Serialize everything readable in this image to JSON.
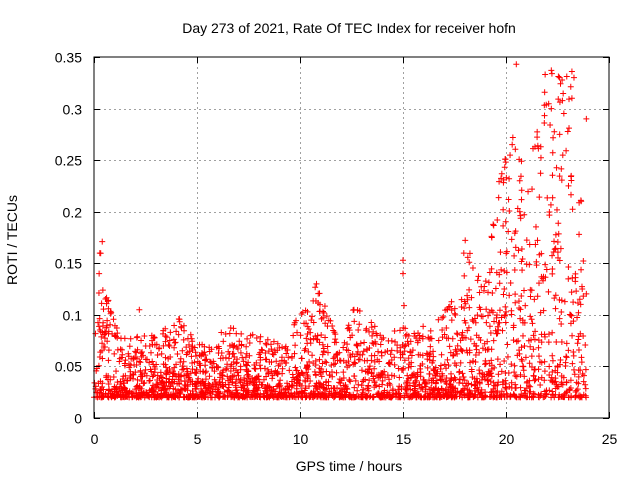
{
  "chart_data": {
    "type": "scatter",
    "title": "Day 273 of 2021, Rate Of TEC Index for receiver hofn",
    "xlabel": "GPS time / hours",
    "ylabel": "ROTI / TECUs",
    "xlim": [
      0,
      25
    ],
    "ylim": [
      0,
      0.35
    ],
    "xticks": [
      0,
      5,
      10,
      15,
      20,
      25
    ],
    "xtick_labels": [
      "0",
      "5",
      "10",
      "15",
      "20",
      "25"
    ],
    "yticks": [
      0,
      0.05,
      0.1,
      0.15,
      0.2,
      0.25,
      0.3,
      0.35
    ],
    "ytick_labels": [
      "0",
      "0.05",
      "0.1",
      "0.15",
      "0.2",
      "0.25",
      "0.3",
      "0.35"
    ],
    "grid": true,
    "marker": "+",
    "color": "#ff0000",
    "series": [
      {
        "name": "ROTI",
        "envelope_note": "dense band of points; approximate upper envelope by time",
        "envelope": [
          {
            "t": 0.0,
            "low": 0.01,
            "high": 0.06
          },
          {
            "t": 0.3,
            "low": 0.01,
            "high": 0.17
          },
          {
            "t": 0.7,
            "low": 0.01,
            "high": 0.12
          },
          {
            "t": 1.2,
            "low": 0.01,
            "high": 0.08
          },
          {
            "t": 2.0,
            "low": 0.01,
            "high": 0.08
          },
          {
            "t": 3.0,
            "low": 0.01,
            "high": 0.08
          },
          {
            "t": 4.2,
            "low": 0.01,
            "high": 0.1
          },
          {
            "t": 5.0,
            "low": 0.01,
            "high": 0.07
          },
          {
            "t": 6.0,
            "low": 0.01,
            "high": 0.08
          },
          {
            "t": 6.6,
            "low": 0.01,
            "high": 0.09
          },
          {
            "t": 8.0,
            "low": 0.01,
            "high": 0.08
          },
          {
            "t": 9.5,
            "low": 0.01,
            "high": 0.07
          },
          {
            "t": 10.0,
            "low": 0.01,
            "high": 0.12
          },
          {
            "t": 10.8,
            "low": 0.01,
            "high": 0.13
          },
          {
            "t": 12.0,
            "low": 0.01,
            "high": 0.07
          },
          {
            "t": 12.6,
            "low": 0.01,
            "high": 0.11
          },
          {
            "t": 13.2,
            "low": 0.01,
            "high": 0.1
          },
          {
            "t": 14.0,
            "low": 0.01,
            "high": 0.08
          },
          {
            "t": 15.0,
            "low": 0.01,
            "high": 0.09
          },
          {
            "t": 16.5,
            "low": 0.01,
            "high": 0.09
          },
          {
            "t": 17.5,
            "low": 0.01,
            "high": 0.12
          },
          {
            "t": 18.0,
            "low": 0.01,
            "high": 0.18
          },
          {
            "t": 19.0,
            "low": 0.01,
            "high": 0.14
          },
          {
            "t": 19.8,
            "low": 0.01,
            "high": 0.25
          },
          {
            "t": 20.5,
            "low": 0.01,
            "high": 0.28
          },
          {
            "t": 21.0,
            "low": 0.01,
            "high": 0.22
          },
          {
            "t": 21.8,
            "low": 0.01,
            "high": 0.33
          },
          {
            "t": 22.5,
            "low": 0.01,
            "high": 0.34
          },
          {
            "t": 23.2,
            "low": 0.01,
            "high": 0.33
          },
          {
            "t": 23.9,
            "low": 0.01,
            "high": 0.15
          }
        ],
        "outliers": [
          {
            "x": 0.4,
            "y": 0.171
          },
          {
            "x": 2.2,
            "y": 0.105
          },
          {
            "x": 10.8,
            "y": 0.13
          },
          {
            "x": 15.0,
            "y": 0.153
          },
          {
            "x": 15.0,
            "y": 0.14
          },
          {
            "x": 15.05,
            "y": 0.109
          },
          {
            "x": 20.5,
            "y": 0.343
          },
          {
            "x": 21.9,
            "y": 0.333
          },
          {
            "x": 22.2,
            "y": 0.337
          },
          {
            "x": 22.6,
            "y": 0.33
          },
          {
            "x": 23.2,
            "y": 0.336
          },
          {
            "x": 23.3,
            "y": 0.33
          },
          {
            "x": 23.2,
            "y": 0.31
          },
          {
            "x": 22.2,
            "y": 0.3
          },
          {
            "x": 23.9,
            "y": 0.29
          },
          {
            "x": 20.3,
            "y": 0.265
          }
        ]
      }
    ]
  }
}
